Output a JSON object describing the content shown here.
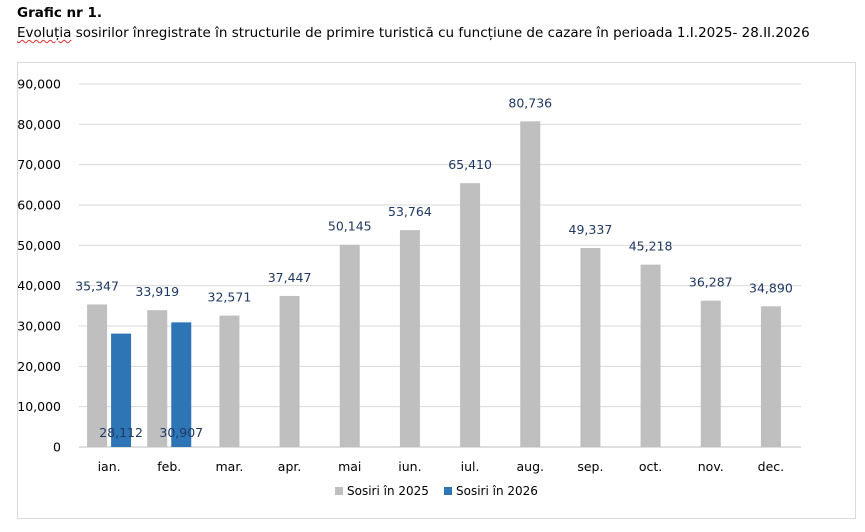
{
  "document": {
    "heading_label": "Grafic nr 1.",
    "heading_word_underlined": "Evoluția",
    "heading_rest": " sosirilor înregistrate în structurile de primire turistică cu funcțiune de cazare în perioada 1.I.2025- 28.II.2026"
  },
  "chart_data": {
    "type": "bar",
    "title": "Evoluția sosirilor înregistrate în structurile de primire turistică cu funcțiune de cazare în perioada 1.I.2025- 28.II.2026",
    "xlabel": "",
    "ylabel": "",
    "ylim": [
      0,
      90000
    ],
    "y_ticks": [
      0,
      10000,
      20000,
      30000,
      40000,
      50000,
      60000,
      70000,
      80000,
      90000
    ],
    "y_tick_labels": [
      "0",
      "10,000",
      "20,000",
      "30,000",
      "40,000",
      "50,000",
      "60,000",
      "70,000",
      "80,000",
      "90,000"
    ],
    "grid": true,
    "legend_position": "bottom-center",
    "categories": [
      "ian.",
      "feb.",
      "mar.",
      "apr.",
      "mai",
      "iun.",
      "iul.",
      "aug.",
      "sep.",
      "oct.",
      "nov.",
      "dec."
    ],
    "series": [
      {
        "name": "Sosiri în 2025",
        "color": "#bfbfbf",
        "values": [
          35347,
          33919,
          32571,
          37447,
          50145,
          53764,
          65410,
          80736,
          49337,
          45218,
          36287,
          34890
        ],
        "labels": [
          "35,347",
          "33,919",
          "32,571",
          "37,447",
          "50,145",
          "53,764",
          "65,410",
          "80,736",
          "49,337",
          "45,218",
          "36,287",
          "34,890"
        ]
      },
      {
        "name": "Sosiri în 2026",
        "color": "#2e75b6",
        "values": [
          28112,
          30907,
          null,
          null,
          null,
          null,
          null,
          null,
          null,
          null,
          null,
          null
        ],
        "labels": [
          "28,112",
          "30,907",
          null,
          null,
          null,
          null,
          null,
          null,
          null,
          null,
          null,
          null
        ]
      }
    ]
  }
}
